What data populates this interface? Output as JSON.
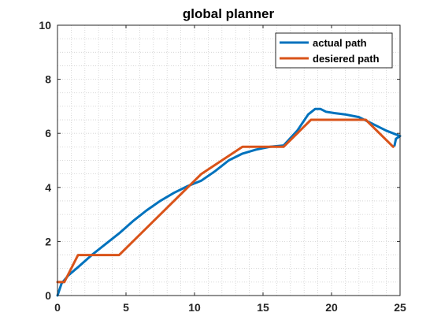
{
  "chart_data": {
    "type": "line",
    "title": "global planner",
    "xlabel": "",
    "ylabel": "",
    "xlim": [
      0,
      25
    ],
    "ylim": [
      0,
      10
    ],
    "xticks": [
      0,
      5,
      10,
      15,
      20,
      25
    ],
    "yticks": [
      0,
      2,
      4,
      6,
      8,
      10
    ],
    "grid": "minor-dotted",
    "legend_position": "top-right",
    "series": [
      {
        "name": "actual path",
        "color": "#0072BD",
        "x": [
          0,
          0.3,
          0.8,
          1.5,
          2.5,
          3.5,
          4.5,
          5.5,
          6.5,
          7.5,
          8.5,
          9.5,
          10.5,
          11.5,
          12.5,
          13.5,
          14.5,
          15.5,
          16.5,
          17.5,
          18.3,
          18.8,
          19.2,
          19.6,
          20.2,
          21,
          22,
          23,
          24,
          25,
          24.7,
          24.6
        ],
        "y": [
          0,
          0.45,
          0.75,
          1.05,
          1.5,
          1.9,
          2.3,
          2.75,
          3.15,
          3.5,
          3.8,
          4.05,
          4.25,
          4.6,
          5.0,
          5.25,
          5.4,
          5.5,
          5.55,
          6.1,
          6.7,
          6.9,
          6.9,
          6.8,
          6.75,
          6.7,
          6.6,
          6.35,
          6.1,
          5.9,
          5.8,
          5.55
        ]
      },
      {
        "name": "desiered path",
        "color": "#D95319",
        "x": [
          0,
          0.5,
          1.5,
          4.5,
          10.5,
          13.5,
          16.5,
          18.5,
          22.5,
          24.5
        ],
        "y": [
          0.5,
          0.5,
          1.5,
          1.5,
          4.5,
          5.5,
          5.5,
          6.5,
          6.5,
          5.5
        ]
      }
    ]
  }
}
